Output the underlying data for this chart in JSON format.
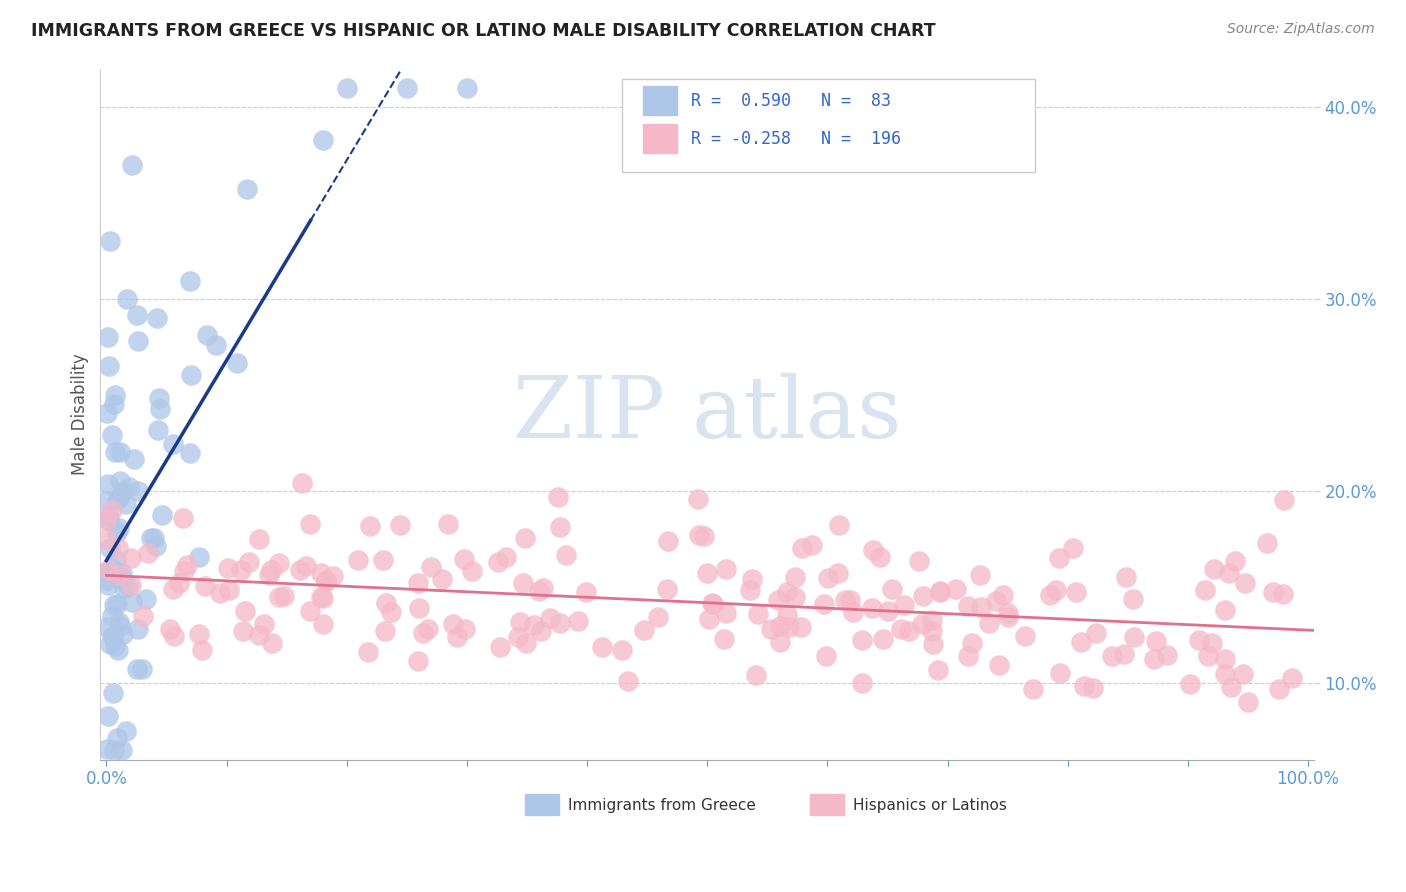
{
  "title": "IMMIGRANTS FROM GREECE VS HISPANIC OR LATINO MALE DISABILITY CORRELATION CHART",
  "source": "Source: ZipAtlas.com",
  "ylabel": "Male Disability",
  "ylim": [
    0.06,
    0.42
  ],
  "xlim": [
    -0.005,
    1.005
  ],
  "color_blue": "#aec6e8",
  "color_pink": "#f5b8c8",
  "trendline_blue": "#1a3a8a",
  "trendline_pink": "#e07090",
  "watermark_color": "#d8e4f0",
  "background_color": "#ffffff",
  "grid_color": "#cccccc",
  "tick_color": "#5b9bd5",
  "title_color": "#222222",
  "source_color": "#888888",
  "legend_r1": "R =  0.590",
  "legend_n1": "N =  83",
  "legend_r2": "R = -0.258",
  "legend_n2": "N =  196",
  "legend_text_color": "#3366cc"
}
